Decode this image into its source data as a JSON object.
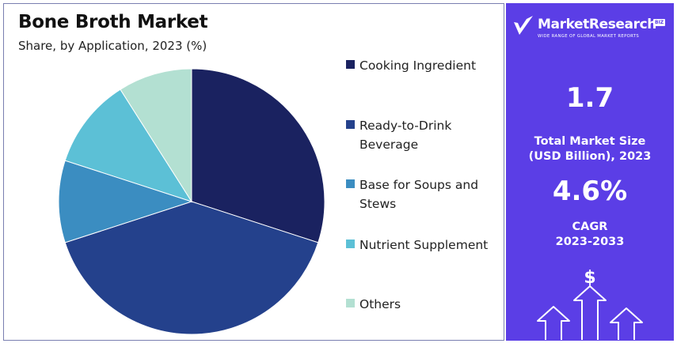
{
  "title": "Bone Broth Market",
  "subtitle": "Share, by Application, 2023 (%)",
  "chart_data": {
    "type": "pie",
    "title": "Bone Broth Market",
    "subtitle": "Share, by Application, 2023 (%)",
    "legend_position": "right",
    "slices": [
      {
        "label": "Cooking Ingredient",
        "value": 30,
        "color": "#1a2260"
      },
      {
        "label": "Ready-to-Drink Beverage",
        "value": 40,
        "color": "#24418c"
      },
      {
        "label": "Base for Soups and Stews",
        "value": 10,
        "color": "#3b8dc1"
      },
      {
        "label": "Nutrient Supplement",
        "value": 11,
        "color": "#5cc0d6"
      },
      {
        "label": "Others",
        "value": 9,
        "color": "#b3e0d2"
      }
    ]
  },
  "legend": [
    {
      "label_lines": [
        "Cooking Ingredient"
      ],
      "color": "#1a2260"
    },
    {
      "label_lines": [
        "Ready-to-Drink",
        "Beverage"
      ],
      "color": "#24418c"
    },
    {
      "label_lines": [
        "Base for Soups and",
        "Stews"
      ],
      "color": "#3b8dc1"
    },
    {
      "label_lines": [
        "Nutrient Supplement"
      ],
      "color": "#5cc0d6"
    },
    {
      "label_lines": [
        "Others"
      ],
      "color": "#b3e0d2"
    }
  ],
  "side_panel": {
    "brand_name": "MarketResearch",
    "brand_badge": "BIZ",
    "brand_tagline": "WIDE RANGE OF GLOBAL MARKET REPORTS",
    "background_color": "#5b3ee6",
    "market_size_value": "1.7",
    "market_size_label_1": "Total Market Size",
    "market_size_label_2": "(USD Billion), 2023",
    "cagr_value": "4.6%",
    "cagr_label_1": "CAGR",
    "cagr_label_2": "2023-2033",
    "icon": "growth-arrows-dollar-icon"
  }
}
